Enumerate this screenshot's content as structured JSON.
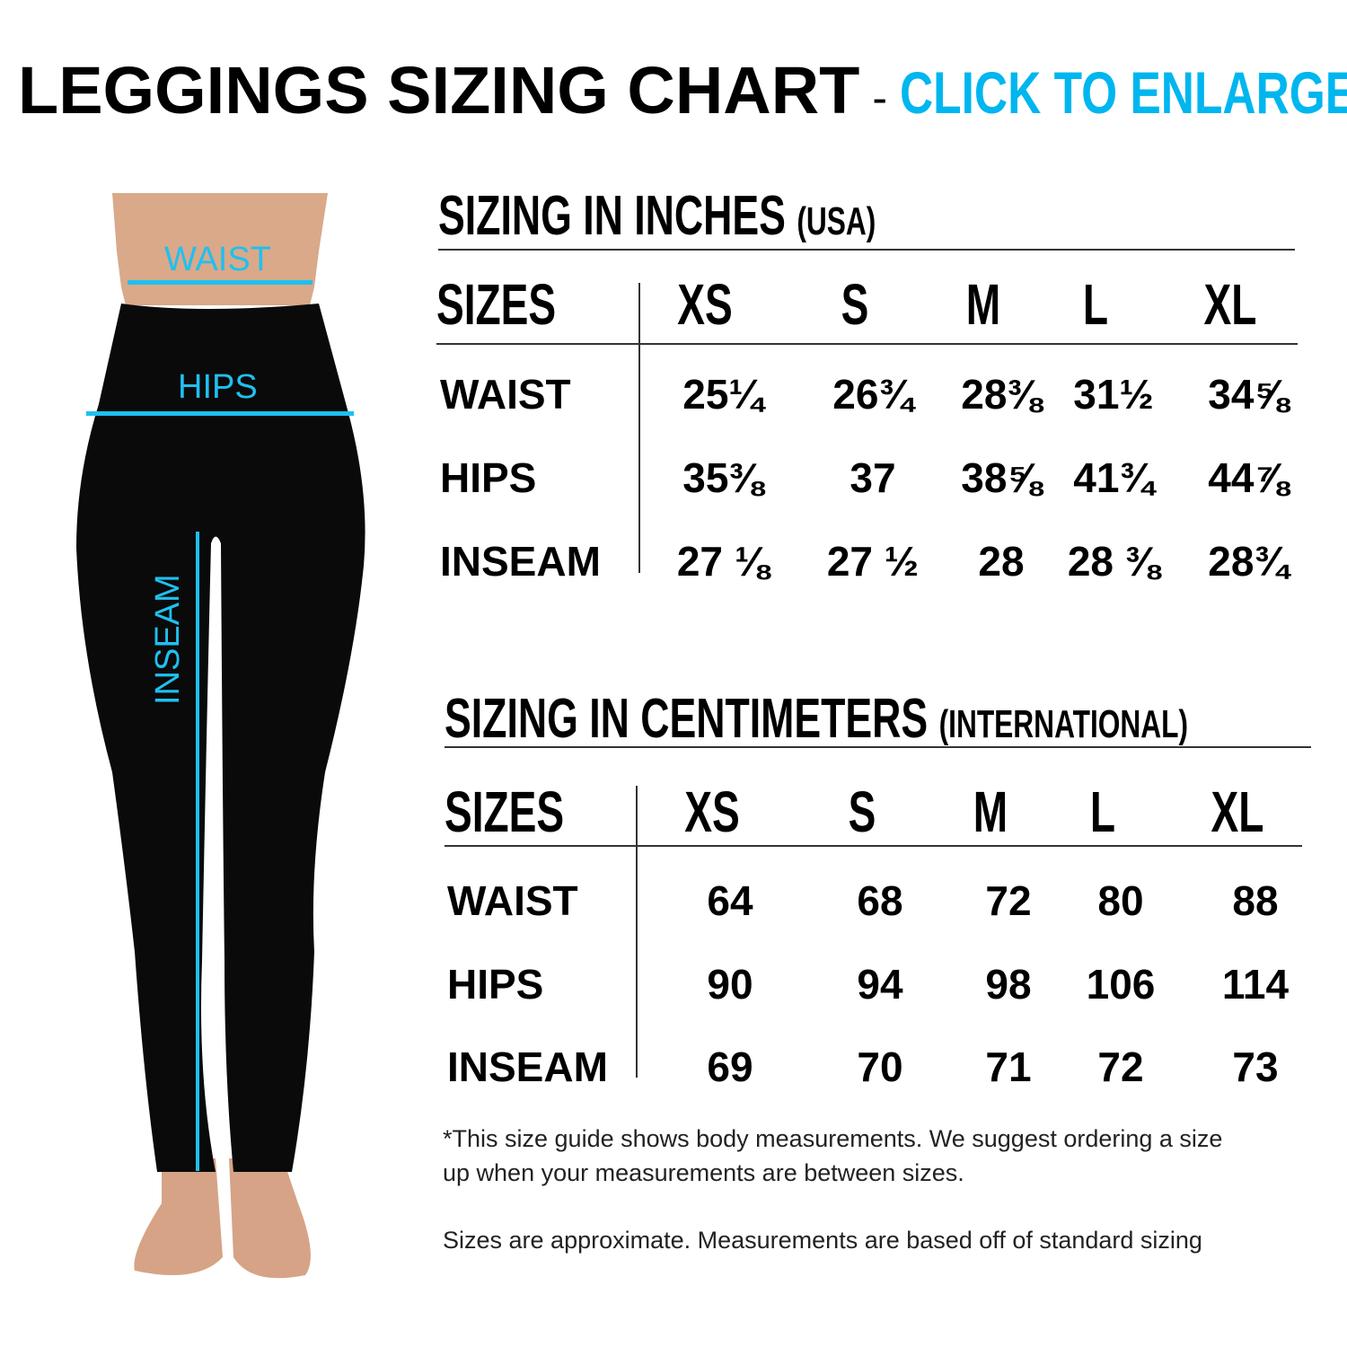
{
  "title": {
    "main": "LEGGINGS SIZING CHART",
    "separator": "-",
    "cta": "CLICK TO ENLARGE"
  },
  "figure": {
    "waist_label": "WAIST",
    "hips_label": "HIPS",
    "inseam_label": "INSEAM"
  },
  "inches": {
    "heading": "SIZING IN INCHES",
    "heading_sub": "(USA)",
    "header": "SIZES",
    "sizes": [
      "XS",
      "S",
      "M",
      "L",
      "XL"
    ],
    "rows": [
      {
        "label": "WAIST",
        "values": [
          "25¼",
          "26¾",
          "28⅜",
          "31½",
          "34⅝"
        ]
      },
      {
        "label": "HIPS",
        "values": [
          "35⅜",
          "37",
          "38⅝",
          "41¾",
          "44⅞"
        ]
      },
      {
        "label": "INSEAM",
        "values": [
          "27 ⅛",
          "27 ½",
          "28",
          "28 ⅜",
          "28¾"
        ]
      }
    ]
  },
  "cm": {
    "heading": "SIZING IN CENTIMETERS",
    "heading_sub": "(INTERNATIONAL)",
    "header": "SIZES",
    "sizes": [
      "XS",
      "S",
      "M",
      "L",
      "XL"
    ],
    "rows": [
      {
        "label": "WAIST",
        "values": [
          "64",
          "68",
          "72",
          "80",
          "88"
        ]
      },
      {
        "label": "HIPS",
        "values": [
          "90",
          "94",
          "98",
          "106",
          "114"
        ]
      },
      {
        "label": "INSEAM",
        "values": [
          "69",
          "70",
          "71",
          "72",
          "73"
        ]
      }
    ]
  },
  "notes": {
    "line1": "*This size guide shows body measurements. We suggest ordering a size",
    "line2": "up when your measurements are between sizes.",
    "line3": "Sizes are approximate. Measurements are based off of standard sizing"
  },
  "colors": {
    "accent": "#00b6ef",
    "leggings": "#0a0a0a",
    "skin": "#d9a98a"
  }
}
